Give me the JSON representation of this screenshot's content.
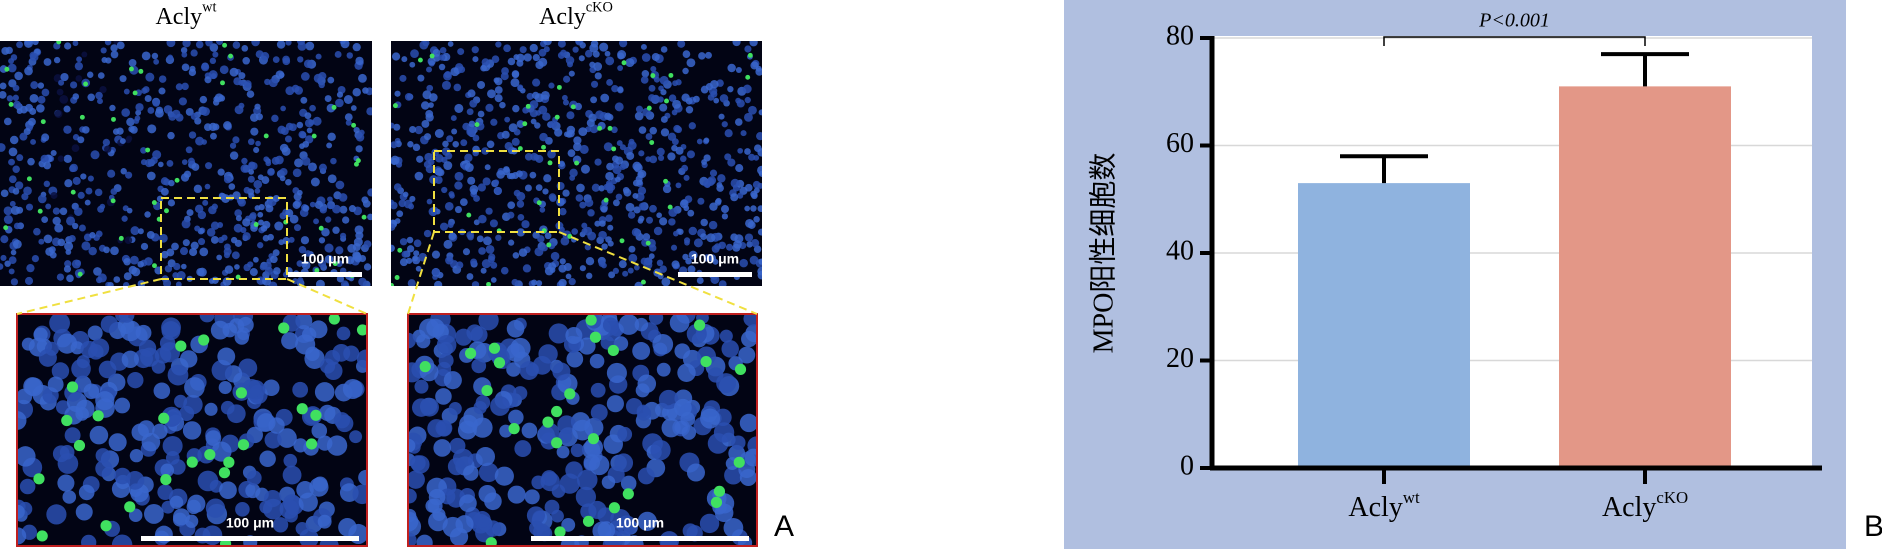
{
  "panel_a": {
    "label": "A",
    "titles": [
      {
        "text": "Acly",
        "superscript": "wt"
      },
      {
        "text": "Acly",
        "superscript": "cKO"
      }
    ],
    "scale_bars": [
      "100 μm",
      "100 μm",
      "100 μm",
      "100 μm"
    ]
  },
  "chart_data": {
    "type": "bar",
    "panel_label": "B",
    "y_label": "MPO阳性细胞数",
    "categories": [
      {
        "text": "Acly",
        "superscript": "wt"
      },
      {
        "text": "Acly",
        "superscript": "cKO"
      }
    ],
    "values": [
      53,
      71
    ],
    "errors": [
      5,
      6
    ],
    "colors": [
      "#8fb3df",
      "#e39787"
    ],
    "ylim": [
      0,
      80
    ],
    "yticks": [
      0,
      20,
      40,
      60,
      80
    ],
    "grid": true,
    "annotation": "P<0.001",
    "background": "#b0bfe0"
  }
}
